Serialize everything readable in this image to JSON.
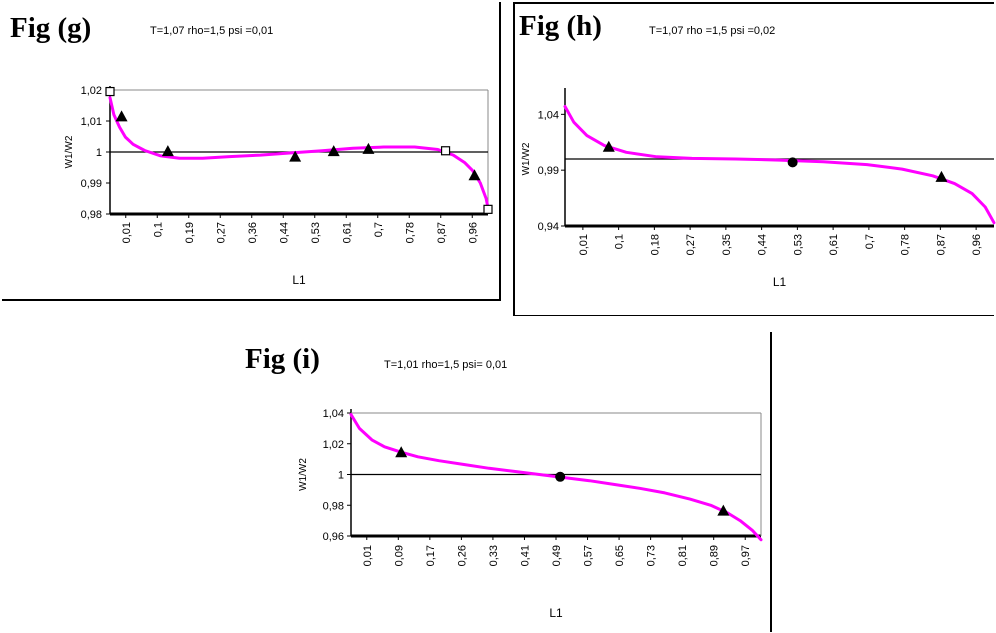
{
  "chart_data": [
    {
      "id": "g",
      "type": "line",
      "fig_label": "Fig (g)",
      "params": "T=1,07  rho=1,5  psi =0,01",
      "xlabel": "L1",
      "ylabel": "W1/W2",
      "yticks": [
        "1,02",
        "1,01",
        "1",
        "0,99",
        "0,98"
      ],
      "ylim": [
        0.98,
        1.02
      ],
      "xticks": [
        "0,01",
        "0,1",
        "0,19",
        "0,27",
        "0,36",
        "0,44",
        "0,53",
        "0,61",
        "0,7",
        "0,78",
        "0,87",
        "0,96"
      ],
      "xlim": [
        0.01,
        0.99
      ],
      "reference_line": 1,
      "grid": "top border line only",
      "colors": {
        "curve": "#ff00ff",
        "markers": "#000000",
        "reference": "#000000"
      },
      "series": [
        {
          "values": {
            "x": [
              0.01,
              0.02,
              0.035,
              0.05,
              0.07,
              0.1,
              0.14,
              0.19,
              0.25,
              0.32,
              0.4,
              0.48,
              0.56,
              0.64,
              0.72,
              0.8,
              0.86,
              0.9,
              0.93,
              0.95,
              0.97,
              0.985,
              0.99
            ],
            "y": [
              1.0175,
              1.012,
              1.008,
              1.0048,
              1.0025,
              1.0005,
              0.9988,
              0.998,
              0.998,
              0.9985,
              0.999,
              0.9997,
              1.0004,
              1.0012,
              1.0016,
              1.0016,
              1.0008,
              0.999,
              0.9965,
              0.994,
              0.99,
              0.985,
              0.982
            ]
          }
        }
      ],
      "markers": [
        {
          "shape": "square",
          "x": 0.01,
          "y": 1.0195
        },
        {
          "shape": "triangle",
          "x": 0.04,
          "y": 1.0115
        },
        {
          "shape": "triangle",
          "x": 0.16,
          "y": 1.0003
        },
        {
          "shape": "triangle",
          "x": 0.49,
          "y": 0.9985
        },
        {
          "shape": "triangle",
          "x": 0.59,
          "y": 1.0003
        },
        {
          "shape": "triangle",
          "x": 0.68,
          "y": 1.001
        },
        {
          "shape": "square",
          "x": 0.88,
          "y": 1.0004
        },
        {
          "shape": "triangle",
          "x": 0.955,
          "y": 0.9925
        },
        {
          "shape": "square",
          "x": 0.99,
          "y": 0.9815
        }
      ]
    },
    {
      "id": "h",
      "type": "line",
      "fig_label": "Fig (h)",
      "params": "T=1,07  rho =1,5  psi =0,02",
      "xlabel": "L1",
      "ylabel": "W1/W2",
      "yticks": [
        "1,04",
        "0,99",
        "0,94"
      ],
      "ylim": [
        0.94,
        1.06
      ],
      "xticks": [
        "0,01",
        "0,1",
        "0,18",
        "0,27",
        "0,35",
        "0,44",
        "0,53",
        "0,61",
        "0,7",
        "0,78",
        "0,87",
        "0,96"
      ],
      "xlim": [
        0.01,
        0.99
      ],
      "reference_line": 1,
      "grid": "none",
      "colors": {
        "curve": "#ff00ff",
        "markers": "#000000",
        "reference": "#000000"
      },
      "series": [
        {
          "values": {
            "x": [
              0.01,
              0.03,
              0.06,
              0.1,
              0.15,
              0.22,
              0.3,
              0.4,
              0.5,
              0.6,
              0.7,
              0.78,
              0.85,
              0.9,
              0.94,
              0.97,
              0.99
            ],
            "y": [
              1.047,
              1.033,
              1.021,
              1.012,
              1.006,
              1.002,
              1.0005,
              1.0,
              0.999,
              0.9975,
              0.995,
              0.991,
              0.985,
              0.978,
              0.969,
              0.957,
              0.943
            ]
          }
        }
      ],
      "markers": [
        {
          "shape": "triangle",
          "x": 0.11,
          "y": 1.011
        },
        {
          "shape": "circle",
          "x": 0.53,
          "y": 0.997
        },
        {
          "shape": "triangle",
          "x": 0.87,
          "y": 0.984
        }
      ]
    },
    {
      "id": "i",
      "type": "line",
      "fig_label": "Fig (i)",
      "params": "T=1,01  rho=1,5   psi= 0,01",
      "xlabel": "L1",
      "ylabel": "W1/W2",
      "yticks": [
        "1,04",
        "1,02",
        "1",
        "0,98",
        "0,96"
      ],
      "ylim": [
        0.96,
        1.04
      ],
      "xticks": [
        "0,01",
        "0,09",
        "0,17",
        "0,26",
        "0,33",
        "0,41",
        "0,49",
        "0,57",
        "0,65",
        "0,73",
        "0,81",
        "0,89",
        "0,97"
      ],
      "xlim": [
        0.01,
        0.99
      ],
      "reference_line": 1,
      "grid": "top border line only",
      "colors": {
        "curve": "#ff00ff",
        "markers": "#000000",
        "reference": "#000000"
      },
      "series": [
        {
          "values": {
            "x": [
              0.01,
              0.03,
              0.06,
              0.09,
              0.13,
              0.17,
              0.22,
              0.28,
              0.34,
              0.4,
              0.46,
              0.52,
              0.58,
              0.64,
              0.7,
              0.76,
              0.82,
              0.87,
              0.91,
              0.94,
              0.97,
              0.99
            ],
            "y": [
              1.039,
              1.03,
              1.0225,
              1.018,
              1.0145,
              1.0115,
              1.009,
              1.0065,
              1.004,
              1.002,
              1.0,
              0.998,
              0.996,
              0.9935,
              0.991,
              0.988,
              0.984,
              0.98,
              0.975,
              0.97,
              0.9635,
              0.9575
            ]
          }
        }
      ],
      "markers": [
        {
          "shape": "triangle",
          "x": 0.13,
          "y": 1.0145
        },
        {
          "shape": "circle",
          "x": 0.51,
          "y": 0.9985
        },
        {
          "shape": "triangle",
          "x": 0.9,
          "y": 0.9765
        }
      ]
    }
  ]
}
